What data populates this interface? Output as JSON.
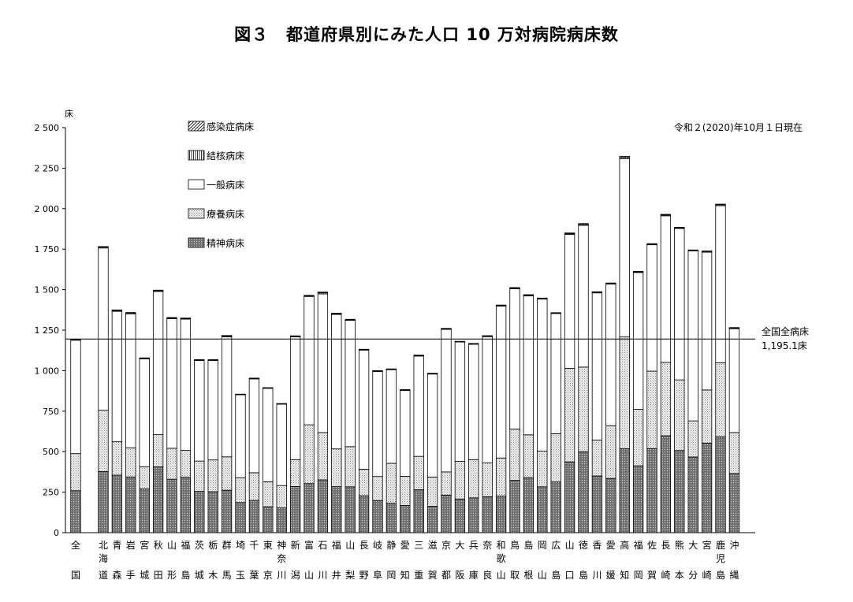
{
  "title": "図３　都道府県別にみた人口 10 万対病院病床数",
  "chart_data": {
    "type": "bar",
    "stacked": true,
    "y_unit_label": "床",
    "ylim": [
      0,
      2500
    ],
    "yticks": [
      0,
      250,
      500,
      750,
      1000,
      1250,
      1500,
      1750,
      2000,
      2250,
      2500
    ],
    "ytick_labels": [
      "0",
      "250",
      "500",
      "750",
      "1 000",
      "1 250",
      "1 500",
      "1 750",
      "2 000",
      "2 250",
      "2 500"
    ],
    "date_note": "令和２(2020)年10月１日現在",
    "reference_line": {
      "value": 1195.1,
      "label_line1": "全国全病床",
      "label_line2": "1,195.1床"
    },
    "categories": [
      [
        "全",
        "国"
      ],
      [
        "北",
        "海",
        "道"
      ],
      [
        "青",
        "森"
      ],
      [
        "岩",
        "手"
      ],
      [
        "宮",
        "城"
      ],
      [
        "秋",
        "田"
      ],
      [
        "山",
        "形"
      ],
      [
        "福",
        "島"
      ],
      [
        "茨",
        "城"
      ],
      [
        "栃",
        "木"
      ],
      [
        "群",
        "馬"
      ],
      [
        "埼",
        "玉"
      ],
      [
        "千",
        "葉"
      ],
      [
        "東",
        "京"
      ],
      [
        "神",
        "奈",
        "川"
      ],
      [
        "新",
        "潟"
      ],
      [
        "富",
        "山"
      ],
      [
        "石",
        "川"
      ],
      [
        "福",
        "井"
      ],
      [
        "山",
        "梨"
      ],
      [
        "長",
        "野"
      ],
      [
        "岐",
        "阜"
      ],
      [
        "静",
        "岡"
      ],
      [
        "愛",
        "知"
      ],
      [
        "三",
        "重"
      ],
      [
        "滋",
        "賀"
      ],
      [
        "京",
        "都"
      ],
      [
        "大",
        "阪"
      ],
      [
        "兵",
        "庫"
      ],
      [
        "奈",
        "良"
      ],
      [
        "和",
        "歌",
        "山"
      ],
      [
        "鳥",
        "取"
      ],
      [
        "島",
        "根"
      ],
      [
        "岡",
        "山"
      ],
      [
        "広",
        "島"
      ],
      [
        "山",
        "口"
      ],
      [
        "徳",
        "島"
      ],
      [
        "香",
        "川"
      ],
      [
        "愛",
        "媛"
      ],
      [
        "高",
        "知"
      ],
      [
        "福",
        "岡"
      ],
      [
        "佐",
        "賀"
      ],
      [
        "長",
        "崎"
      ],
      [
        "熊",
        "本"
      ],
      [
        "大",
        "分"
      ],
      [
        "宮",
        "崎"
      ],
      [
        "鹿",
        "児",
        "島"
      ],
      [
        "沖",
        "縄"
      ]
    ],
    "series": [
      {
        "name": "精神病床",
        "color": "#8c8c8c",
        "values": [
          259,
          377,
          355,
          344,
          270,
          406,
          330,
          342,
          255,
          253,
          262,
          186,
          199,
          160,
          153,
          285,
          303,
          326,
          284,
          283,
          228,
          198,
          182,
          168,
          265,
          163,
          232,
          208,
          215,
          222,
          226,
          323,
          340,
          283,
          313,
          437,
          500,
          350,
          335,
          518,
          413,
          519,
          598,
          507,
          467,
          553,
          592,
          365
        ]
      },
      {
        "name": "療養病床",
        "color": "#d2d2d2",
        "values": [
          229,
          379,
          206,
          180,
          137,
          199,
          191,
          166,
          187,
          196,
          206,
          153,
          171,
          154,
          138,
          166,
          363,
          292,
          233,
          248,
          164,
          149,
          246,
          180,
          206,
          180,
          143,
          232,
          236,
          208,
          235,
          317,
          264,
          220,
          298,
          577,
          522,
          222,
          325,
          690,
          348,
          478,
          453,
          436,
          223,
          328,
          457,
          253
        ]
      },
      {
        "name": "一般病床",
        "color": "#ffffff",
        "values": [
          700,
          1001,
          805,
          827,
          666,
          884,
          800,
          810,
          621,
          614,
          741,
          512,
          579,
          577,
          502,
          758,
          792,
          856,
          830,
          780,
          735,
          648,
          578,
          530,
          619,
          636,
          880,
          737,
          712,
          780,
          938,
          865,
          857,
          939,
          742,
          827,
          875,
          908,
          875,
          1100,
          845,
          780,
          905,
          935,
          1050,
          850,
          969,
          641
        ]
      },
      {
        "name": "結核病床",
        "color": "#ffffff",
        "pattern": "vertical-lines",
        "values": [
          4,
          6,
          5,
          5,
          4,
          5,
          4,
          4,
          3,
          3,
          5,
          3,
          3,
          3,
          3,
          3,
          4,
          7,
          4,
          3,
          3,
          3,
          3,
          3,
          3,
          3,
          4,
          3,
          3,
          3,
          3,
          4,
          4,
          3,
          3,
          5,
          6,
          4,
          3,
          9,
          4,
          4,
          5,
          4,
          3,
          5,
          6,
          4
        ]
      },
      {
        "name": "感染症病床",
        "color": "#ffffff",
        "pattern": "diagonal-lines",
        "values": [
          2,
          3,
          4,
          3,
          2,
          3,
          3,
          3,
          2,
          2,
          3,
          1,
          2,
          1,
          1,
          3,
          3,
          4,
          4,
          3,
          2,
          2,
          2,
          2,
          3,
          2,
          2,
          1,
          2,
          3,
          3,
          4,
          4,
          3,
          2,
          4,
          5,
          3,
          3,
          6,
          3,
          3,
          4,
          3,
          2,
          3,
          4,
          3
        ]
      }
    ],
    "legend": [
      {
        "label": "感染症病床",
        "pattern": "diagonal-lines"
      },
      {
        "label": "結核病床",
        "pattern": "vertical-lines"
      },
      {
        "label": "一般病床",
        "pattern": "none"
      },
      {
        "label": "療養病床",
        "pattern": "dots"
      },
      {
        "label": "精神病床",
        "pattern": "dense-dots"
      }
    ]
  }
}
